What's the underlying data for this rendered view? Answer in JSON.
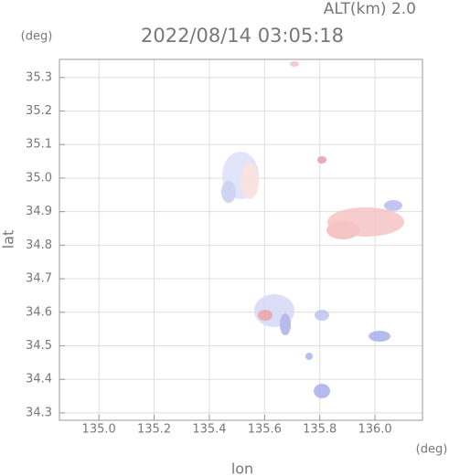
{
  "chart_data": {
    "type": "map",
    "title": "2022/08/14 03:05:18",
    "subtitle": "ALT(km) 2.0",
    "x_label": "lon",
    "y_label": "lat",
    "x_unit": "(deg)",
    "y_unit": "(deg)",
    "xlim": [
      134.857,
      136.172
    ],
    "ylim": [
      34.278,
      35.354
    ],
    "xticks": [
      {
        "value": 135.0,
        "label": "135.0"
      },
      135.2,
      135.4,
      135.6,
      135.8,
      {
        "value": 136.0,
        "label": "136.0"
      }
    ],
    "yticks": [
      35.3,
      35.2,
      35.1,
      {
        "value": 35.0,
        "label": "35.0"
      },
      34.9,
      34.8,
      34.7,
      34.6,
      34.5,
      34.4,
      34.3
    ],
    "grid": true
  }
}
